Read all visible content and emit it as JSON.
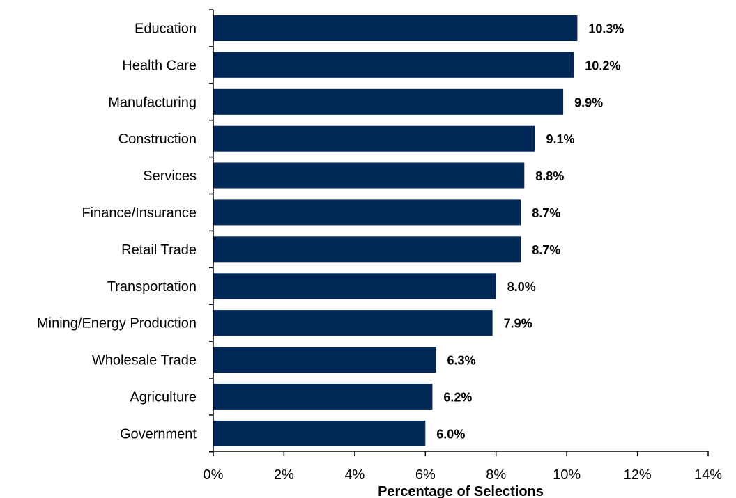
{
  "chart_data": {
    "type": "bar",
    "orientation": "horizontal",
    "categories": [
      "Education",
      "Health Care",
      "Manufacturing",
      "Construction",
      "Services",
      "Finance/Insurance",
      "Retail Trade",
      "Transportation",
      "Mining/Energy Production",
      "Wholesale Trade",
      "Agriculture",
      "Government"
    ],
    "values": [
      10.3,
      10.2,
      9.9,
      9.1,
      8.8,
      8.7,
      8.7,
      8.0,
      7.9,
      6.3,
      6.2,
      6.0
    ],
    "data_labels": [
      "10.3%",
      "10.2%",
      "9.9%",
      "9.1%",
      "8.8%",
      "8.7%",
      "8.7%",
      "8.0%",
      "7.9%",
      "6.3%",
      "6.2%",
      "6.0%"
    ],
    "title": "",
    "xlabel": "Percentage of Selections",
    "ylabel": "",
    "xlim": [
      0,
      14
    ],
    "xticks": [
      0,
      2,
      4,
      6,
      8,
      10,
      12,
      14
    ],
    "xtick_labels": [
      "0%",
      "2%",
      "4%",
      "6%",
      "8%",
      "10%",
      "12%",
      "14%"
    ],
    "grid": false,
    "legend": "none",
    "colors": {
      "bar": "#002856",
      "axis": "#000000"
    }
  }
}
